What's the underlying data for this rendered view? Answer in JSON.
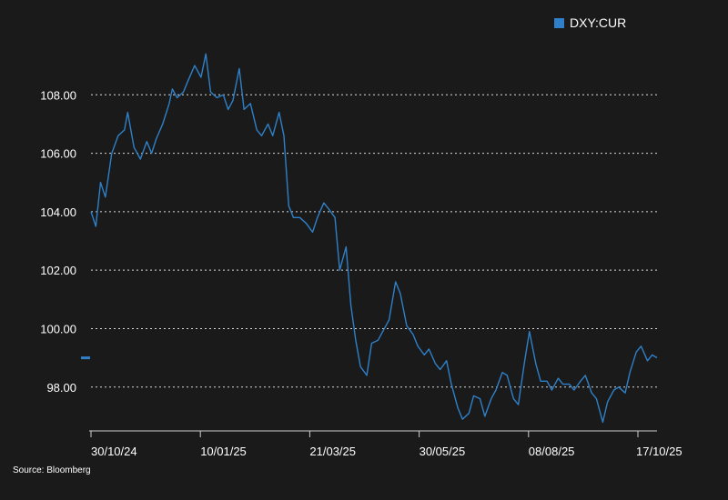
{
  "legend": {
    "label": "DXY:CUR",
    "color": "#2f80c8"
  },
  "source": "Source: Bloomberg",
  "chart_data": {
    "type": "line",
    "title": "",
    "xlabel": "",
    "ylabel": "",
    "ylim": [
      96.5,
      110.0
    ],
    "grid": true,
    "legend_position": "top-right",
    "y_ticks": [
      "98.00",
      "100.00",
      "102.00",
      "104.00",
      "106.00",
      "108.00"
    ],
    "y_tick_values": [
      98,
      100,
      102,
      104,
      106,
      108
    ],
    "x_ticks": [
      "30/10/24",
      "10/01/25",
      "21/03/25",
      "30/05/25",
      "08/08/25",
      "17/10/25"
    ],
    "last_price_marker": 99.0,
    "series": [
      {
        "name": "DXY:CUR",
        "color": "#2f80c8",
        "x": [
          "2024-10-30",
          "2024-11-02",
          "2024-11-05",
          "2024-11-08",
          "2024-11-12",
          "2024-11-16",
          "2024-11-20",
          "2024-11-22",
          "2024-11-26",
          "2024-11-30",
          "2024-12-04",
          "2024-12-07",
          "2024-12-10",
          "2024-12-14",
          "2024-12-18",
          "2024-12-20",
          "2024-12-23",
          "2024-12-27",
          "2024-12-30",
          "2025-01-03",
          "2025-01-07",
          "2025-01-10",
          "2025-01-13",
          "2025-01-17",
          "2025-01-21",
          "2025-01-24",
          "2025-01-27",
          "2025-01-31",
          "2025-02-03",
          "2025-02-07",
          "2025-02-11",
          "2025-02-14",
          "2025-02-18",
          "2025-02-21",
          "2025-02-25",
          "2025-02-28",
          "2025-03-03",
          "2025-03-06",
          "2025-03-10",
          "2025-03-14",
          "2025-03-18",
          "2025-03-21",
          "2025-03-25",
          "2025-03-28",
          "2025-04-01",
          "2025-04-04",
          "2025-04-08",
          "2025-04-11",
          "2025-04-14",
          "2025-04-17",
          "2025-04-21",
          "2025-04-24",
          "2025-04-28",
          "2025-05-01",
          "2025-05-05",
          "2025-05-09",
          "2025-05-12",
          "2025-05-16",
          "2025-05-20",
          "2025-05-23",
          "2025-05-27",
          "2025-05-30",
          "2025-06-03",
          "2025-06-06",
          "2025-06-10",
          "2025-06-13",
          "2025-06-17",
          "2025-06-20",
          "2025-06-24",
          "2025-06-27",
          "2025-07-01",
          "2025-07-04",
          "2025-07-08",
          "2025-07-11",
          "2025-07-15",
          "2025-07-18",
          "2025-07-22",
          "2025-07-25",
          "2025-07-29",
          "2025-08-01",
          "2025-08-05",
          "2025-08-08",
          "2025-08-12",
          "2025-08-15",
          "2025-08-19",
          "2025-08-22",
          "2025-08-26",
          "2025-08-29",
          "2025-09-02",
          "2025-09-05",
          "2025-09-09",
          "2025-09-12",
          "2025-09-16",
          "2025-09-19",
          "2025-09-23",
          "2025-09-26",
          "2025-09-30",
          "2025-10-03",
          "2025-10-07",
          "2025-10-10",
          "2025-10-14",
          "2025-10-17",
          "2025-10-20"
        ],
        "values": [
          104.0,
          103.5,
          105.0,
          104.5,
          106.0,
          106.6,
          106.8,
          107.4,
          106.2,
          105.8,
          106.4,
          106.0,
          106.5,
          107.0,
          107.7,
          108.2,
          107.9,
          108.1,
          108.5,
          109.0,
          108.6,
          109.4,
          108.1,
          107.9,
          108.0,
          107.5,
          107.8,
          108.9,
          107.5,
          107.7,
          106.8,
          106.6,
          107.0,
          106.6,
          107.4,
          106.6,
          104.2,
          103.8,
          103.8,
          103.6,
          103.3,
          103.8,
          104.3,
          104.1,
          103.8,
          102.0,
          102.8,
          100.8,
          99.6,
          98.7,
          98.4,
          99.5,
          99.6,
          99.9,
          100.3,
          101.6,
          101.2,
          100.1,
          99.8,
          99.4,
          99.1,
          99.3,
          98.8,
          98.6,
          98.9,
          98.1,
          97.3,
          96.9,
          97.1,
          97.7,
          97.6,
          97.0,
          97.6,
          97.9,
          98.5,
          98.4,
          97.6,
          97.4,
          98.9,
          99.9,
          98.8,
          98.2,
          98.2,
          97.9,
          98.3,
          98.1,
          98.1,
          97.9,
          98.2,
          98.4,
          97.8,
          97.6,
          96.8,
          97.5,
          97.9,
          98.0,
          97.8,
          98.5,
          99.2,
          99.4,
          98.9,
          99.1,
          99.0
        ]
      }
    ]
  }
}
